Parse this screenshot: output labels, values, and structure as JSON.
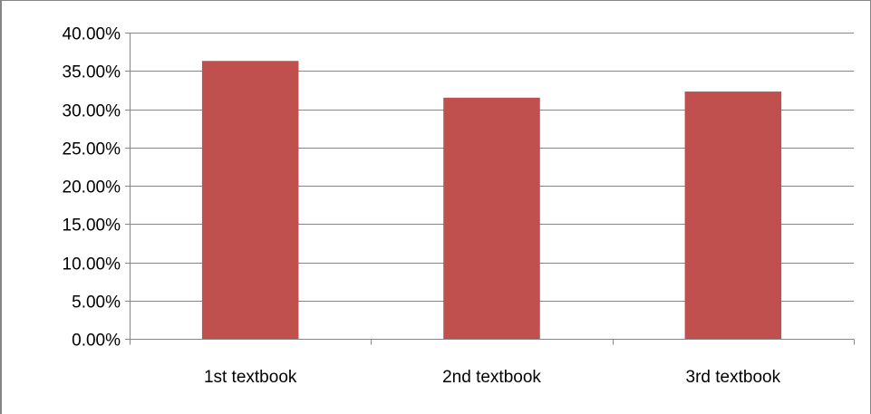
{
  "chart_data": {
    "type": "bar",
    "title": "",
    "xlabel": "",
    "ylabel": "",
    "categories": [
      "1st textbook",
      "2nd textbook",
      "3rd textbook"
    ],
    "values": [
      36.3,
      31.5,
      32.3
    ],
    "ylim": [
      0,
      40
    ],
    "yticks": [
      0,
      5,
      10,
      15,
      20,
      25,
      30,
      35,
      40
    ],
    "ytick_labels": [
      "0.00%",
      "5.00%",
      "10.00%",
      "15.00%",
      "20.00%",
      "25.00%",
      "30.00%",
      "35.00%",
      "40.00%"
    ],
    "grid": true,
    "legend": "none",
    "colors": {
      "bar": "#C0504D",
      "grid": "#868686",
      "axis": "#868686",
      "text": "#000000",
      "frame": "#868686"
    }
  }
}
